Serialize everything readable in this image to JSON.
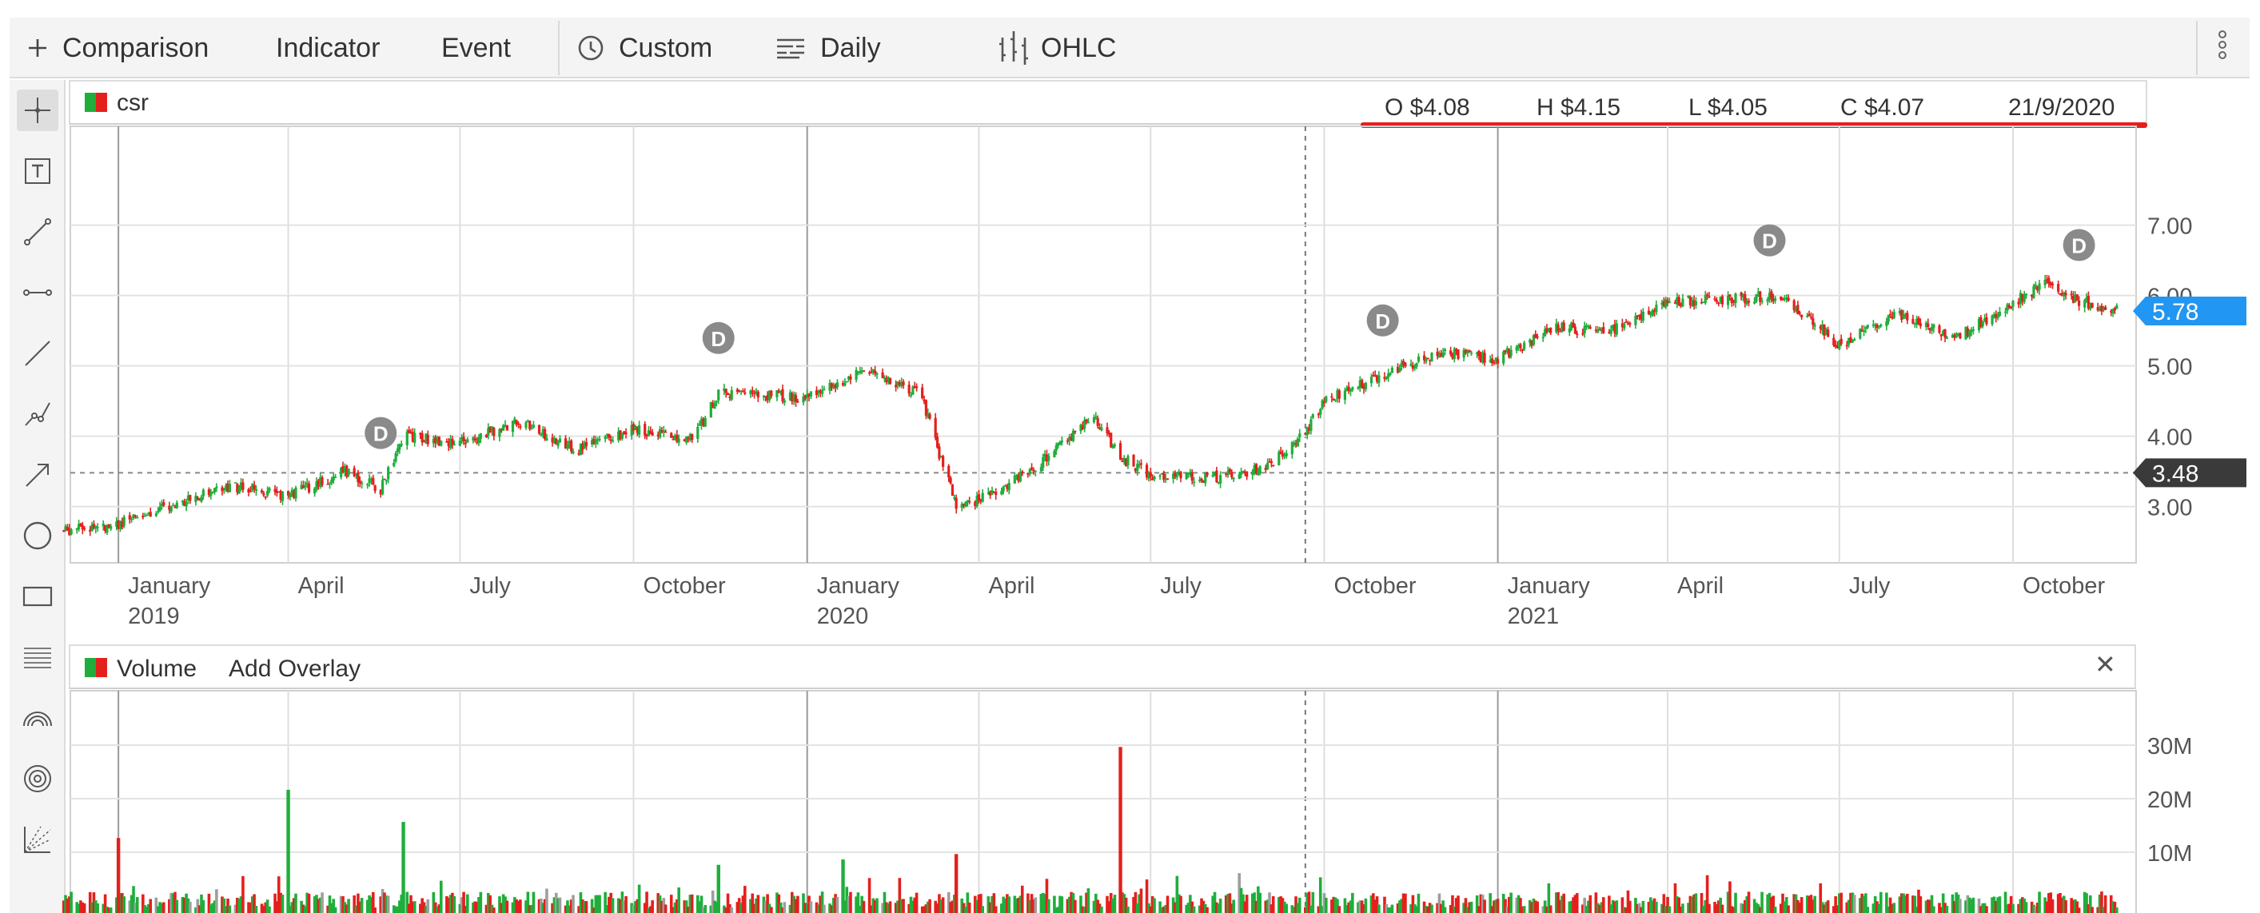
{
  "toolbar": {
    "comparison": "Comparison",
    "indicator": "Indicator",
    "event": "Event",
    "custom": "Custom",
    "daily": "Daily",
    "ohlc": "OHLC",
    "icons": [
      "plus-icon",
      "clock-icon",
      "bars-icon",
      "ohlc-icon",
      "more-vert-icon"
    ]
  },
  "tools": [
    "crosshair-icon",
    "text-box-icon",
    "line-segment-icon",
    "horizontal-segment-icon",
    "trend-line-icon",
    "polyline-icon",
    "arrow-icon",
    "circle-icon",
    "rectangle-icon",
    "fibonacci-icon",
    "arc-icon",
    "concentric-circles-icon",
    "gann-fan-icon"
  ],
  "price_pane": {
    "symbol": "csr",
    "open": "O $4.08",
    "high": "H $4.15",
    "low": "L $4.05",
    "close": "C $4.07",
    "date": "21/9/2020",
    "last_price_badge": "5.78",
    "crosshair_badge": "3.48",
    "dividend_marker": "D"
  },
  "volume_pane": {
    "title": "Volume",
    "add_overlay": "Add Overlay",
    "close": "✕"
  },
  "colors": {
    "up": "#1fae3b",
    "down": "#e4201d",
    "accent": "#2196f3",
    "highlight": "#e4201d"
  },
  "chart_data": {
    "type": "candlestick",
    "x_labels": [
      {
        "month": "January",
        "year": "2019"
      },
      {
        "month": "April",
        "year": ""
      },
      {
        "month": "July",
        "year": ""
      },
      {
        "month": "October",
        "year": ""
      },
      {
        "month": "January",
        "year": "2020"
      },
      {
        "month": "April",
        "year": ""
      },
      {
        "month": "July",
        "year": ""
      },
      {
        "month": "October",
        "year": ""
      },
      {
        "month": "January",
        "year": "2021"
      },
      {
        "month": "April",
        "year": ""
      },
      {
        "month": "July",
        "year": ""
      },
      {
        "month": "October",
        "year": ""
      }
    ],
    "y_ticks": [
      "3.00",
      "4.00",
      "5.00",
      "6.00",
      "7.00"
    ],
    "volume_ticks": [
      "10M",
      "20M",
      "30M"
    ],
    "price_path": [
      [
        "2018-12-01",
        2.65
      ],
      [
        "2019-01-01",
        2.75
      ],
      [
        "2019-02-01",
        3.05
      ],
      [
        "2019-03-01",
        3.3
      ],
      [
        "2019-04-01",
        3.15
      ],
      [
        "2019-05-01",
        3.5
      ],
      [
        "2019-05-20",
        3.25
      ],
      [
        "2019-06-01",
        4.0
      ],
      [
        "2019-07-01",
        3.9
      ],
      [
        "2019-08-01",
        4.2
      ],
      [
        "2019-09-01",
        3.8
      ],
      [
        "2019-10-01",
        4.1
      ],
      [
        "2019-11-01",
        3.95
      ],
      [
        "2019-11-15",
        4.6
      ],
      [
        "2019-12-01",
        4.6
      ],
      [
        "2020-01-01",
        4.55
      ],
      [
        "2020-02-01",
        4.95
      ],
      [
        "2020-03-01",
        4.6
      ],
      [
        "2020-03-20",
        3.0
      ],
      [
        "2020-04-01",
        3.1
      ],
      [
        "2020-05-01",
        3.55
      ],
      [
        "2020-06-01",
        4.3
      ],
      [
        "2020-06-15",
        3.7
      ],
      [
        "2020-07-01",
        3.45
      ],
      [
        "2020-08-01",
        3.4
      ],
      [
        "2020-09-01",
        3.55
      ],
      [
        "2020-09-21",
        4.07
      ],
      [
        "2020-10-01",
        4.5
      ],
      [
        "2020-11-01",
        4.85
      ],
      [
        "2020-12-01",
        5.2
      ],
      [
        "2021-01-01",
        5.1
      ],
      [
        "2021-02-01",
        5.55
      ],
      [
        "2021-03-01",
        5.5
      ],
      [
        "2021-04-01",
        5.9
      ],
      [
        "2021-05-01",
        5.95
      ],
      [
        "2021-06-01",
        6.0
      ],
      [
        "2021-07-01",
        5.3
      ],
      [
        "2021-08-01",
        5.75
      ],
      [
        "2021-09-01",
        5.4
      ],
      [
        "2021-10-01",
        5.9
      ],
      [
        "2021-10-20",
        6.2
      ],
      [
        "2021-11-01",
        5.95
      ],
      [
        "2021-11-25",
        5.78
      ]
    ],
    "dividend_dates": [
      "2019-05-20",
      "2019-11-15",
      "2020-11-01",
      "2021-05-25",
      "2021-11-05"
    ],
    "volume_spikes": [
      [
        "2019-01-01",
        14
      ],
      [
        "2019-04-01",
        23
      ],
      [
        "2019-06-01",
        17
      ],
      [
        "2020-06-15",
        31
      ],
      [
        "2020-03-20",
        11
      ],
      [
        "2019-11-15",
        9
      ],
      [
        "2020-01-20",
        10
      ]
    ],
    "last": 5.78
  }
}
